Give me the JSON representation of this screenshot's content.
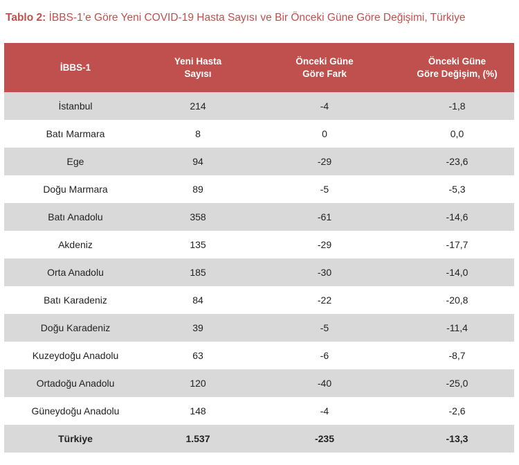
{
  "caption": {
    "label": "Tablo 2:",
    "text": " İBBS-1’e Göre Yeni COVID-19 Hasta Sayısı ve Bir Önceki Güne Göre Değişimi, Türkiye"
  },
  "colors": {
    "accent": "#c0504d",
    "row_shade": "#d9d9d9",
    "row_plain": "#ffffff"
  },
  "table": {
    "headers": [
      "İBBS-1",
      "Yeni Hasta\nSayısı",
      "Önceki Güne\nGöre Fark",
      "Önceki Güne\nGöre Değişim, (%)"
    ],
    "rows": [
      [
        "İstanbul",
        "214",
        "-4",
        "-1,8"
      ],
      [
        "Batı Marmara",
        "8",
        "0",
        "0,0"
      ],
      [
        "Ege",
        "94",
        "-29",
        "-23,6"
      ],
      [
        "Doğu Marmara",
        "89",
        "-5",
        "-5,3"
      ],
      [
        "Batı Anadolu",
        "358",
        "-61",
        "-14,6"
      ],
      [
        "Akdeniz",
        "135",
        "-29",
        "-17,7"
      ],
      [
        "Orta Anadolu",
        "185",
        "-30",
        "-14,0"
      ],
      [
        "Batı Karadeniz",
        "84",
        "-22",
        "-20,8"
      ],
      [
        "Doğu Karadeniz",
        "39",
        "-5",
        "-11,4"
      ],
      [
        "Kuzeydoğu Anadolu",
        "63",
        "-6",
        "-8,7"
      ],
      [
        "Ortadoğu Anadolu",
        "120",
        "-40",
        "-25,0"
      ],
      [
        "Güneydoğu Anadolu",
        "148",
        "-4",
        "-2,6"
      ]
    ],
    "total": [
      "Türkiye",
      "1.537",
      "-235",
      "-13,3"
    ]
  }
}
